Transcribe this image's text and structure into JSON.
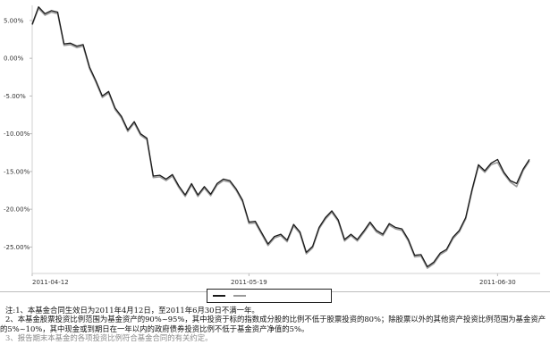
{
  "chart_data": {
    "type": "line",
    "title": "",
    "xlabel": "",
    "ylabel": "",
    "x_tick_labels": [
      "2011-04-12",
      "2011-05-19",
      "2011-06-30"
    ],
    "y_tick_labels": [
      "5.00%",
      "0.00%",
      "-5.00%",
      "-10.00%",
      "-15.00%",
      "-20.00%",
      "-25.00%"
    ],
    "ylim": [
      -28.5,
      7
    ],
    "grid": false,
    "legend_position": "bottom-center",
    "series": [
      {
        "name": "",
        "color": "#1a1a1a",
        "values": [
          4.5,
          6.8,
          5.9,
          6.3,
          6.1,
          1.9,
          2.0,
          1.6,
          1.8,
          -1.2,
          -3.0,
          -5.0,
          -4.4,
          -6.6,
          -7.7,
          -9.5,
          -8.4,
          -10.0,
          -10.6,
          -15.6,
          -15.5,
          -16.0,
          -15.4,
          -16.9,
          -18.1,
          -16.6,
          -18.1,
          -17.0,
          -18.0,
          -16.6,
          -16.0,
          -16.2,
          -17.3,
          -18.8,
          -21.7,
          -21.6,
          -23.1,
          -24.6,
          -23.6,
          -23.3,
          -24.1,
          -22.0,
          -23.0,
          -25.7,
          -24.9,
          -22.4,
          -21.1,
          -20.2,
          -21.4,
          -24.0,
          -23.3,
          -24.0,
          -22.9,
          -21.7,
          -22.8,
          -23.3,
          -21.9,
          -22.4,
          -22.6,
          -24.0,
          -26.1,
          -26.0,
          -27.6,
          -27.0,
          -25.8,
          -25.3,
          -23.7,
          -22.8,
          -21.1,
          -17.4,
          -14.1,
          -14.9,
          -13.9,
          -13.4,
          -15.1,
          -16.2,
          -16.6,
          -14.7,
          -13.4
        ]
      },
      {
        "name": "",
        "color": "#9a9a9a",
        "values": [
          4.4,
          6.6,
          5.7,
          6.1,
          5.9,
          1.7,
          1.8,
          1.4,
          1.6,
          -1.4,
          -3.2,
          -5.2,
          -4.6,
          -6.8,
          -7.9,
          -9.7,
          -8.6,
          -10.2,
          -10.8,
          -15.8,
          -15.7,
          -16.2,
          -15.6,
          -17.1,
          -18.3,
          -16.8,
          -18.3,
          -17.2,
          -18.2,
          -16.8,
          -16.2,
          -16.4,
          -17.5,
          -19.0,
          -21.9,
          -21.8,
          -23.3,
          -24.8,
          -23.8,
          -23.5,
          -24.3,
          -22.2,
          -23.2,
          -25.9,
          -25.1,
          -22.6,
          -21.3,
          -20.4,
          -21.6,
          -24.2,
          -23.5,
          -24.2,
          -23.1,
          -21.9,
          -23.0,
          -23.5,
          -22.1,
          -22.6,
          -22.8,
          -24.2,
          -26.3,
          -26.2,
          -27.8,
          -27.2,
          -26.0,
          -25.5,
          -23.9,
          -23.0,
          -21.3,
          -17.6,
          -14.3,
          -15.1,
          -14.1,
          -13.8,
          -15.3,
          -16.4,
          -17.0,
          -14.9,
          -13.6
        ]
      }
    ]
  },
  "notes": {
    "line1": "注:1、本基金合同生效日为2011年4月12日，至2011年6月30日不满一年。",
    "line2": "2、本基金股票投资比例范围为基金资产的90%~95%，其中投资于标的指数成分股的比例不低于股票投资的80%；除股票以外的其他资产投资比例范围为基金资产的5%~10%，其中现金或到期日在一年以内的政府债券投资比例不低于基金资产净值的5%。",
    "line3": "3、报告期末本基金的各项投资比例符合基金合同的有关约定。"
  }
}
